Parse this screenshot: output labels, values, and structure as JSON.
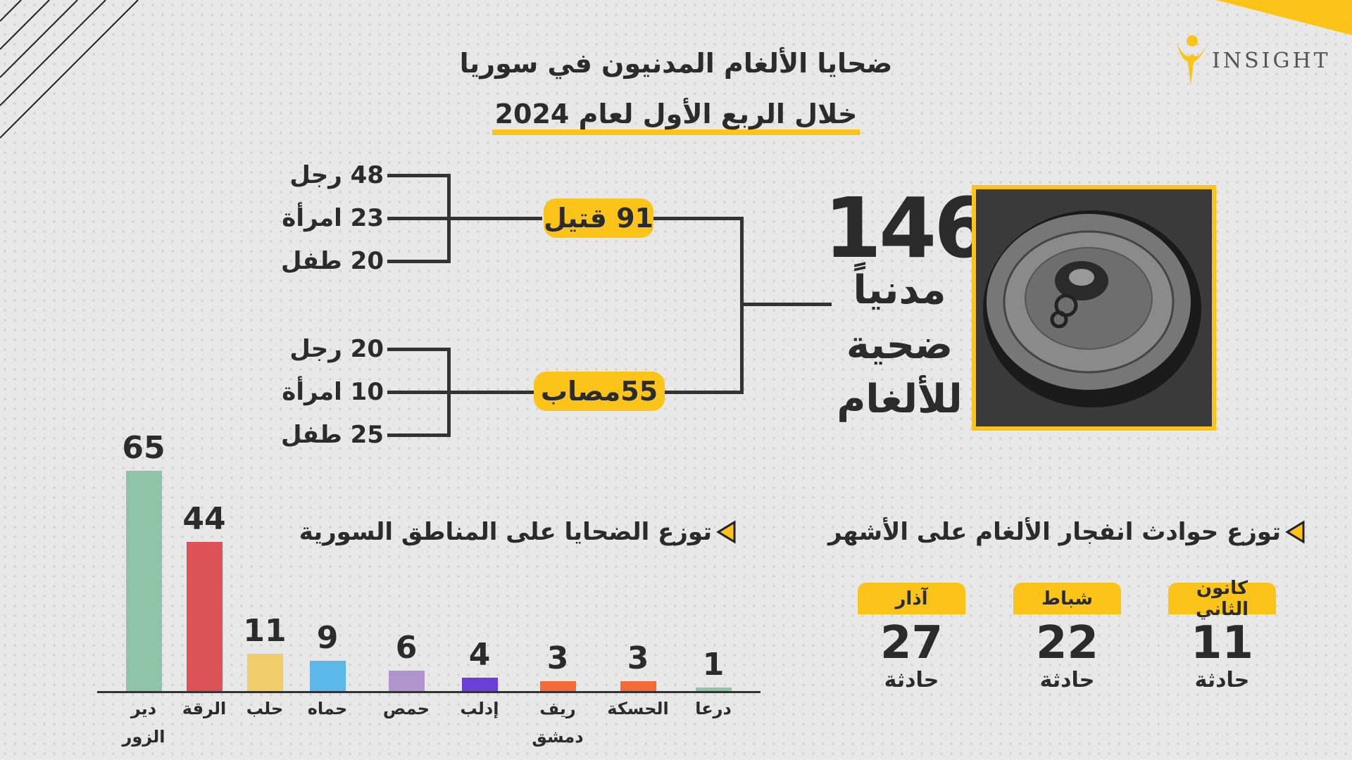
{
  "title": {
    "line1": "ضحايا الألغام المدنيون في سوريا",
    "line2": "خلال الربع الأول لعام 2024"
  },
  "logo": {
    "text": "INSIGHT"
  },
  "colors": {
    "accent": "#fcc419",
    "text": "#2b2b2b",
    "background": "#e8e8e8"
  },
  "total": {
    "value": "146",
    "line1": "مدنياً",
    "line2": "ضحية",
    "line3": "للألغام"
  },
  "killed": {
    "label": "91 قتيل",
    "items": [
      "48 رجل",
      "23 امرأة",
      "20 طفل"
    ]
  },
  "injured": {
    "label": "55مصاب",
    "items": [
      "20 رجل",
      "10 امرأة",
      "25 طفل"
    ]
  },
  "regions_heading": "توزع الضحايا على المناطق السورية",
  "months_heading": "توزع حوادث انفجار الألغام على الأشهر",
  "months": [
    {
      "name": "كانون الثاني",
      "value": "11",
      "unit": "حادثة"
    },
    {
      "name": "شباط",
      "value": "22",
      "unit": "حادثة"
    },
    {
      "name": "آذار",
      "value": "27",
      "unit": "حادثة"
    }
  ],
  "chart_data": {
    "type": "bar",
    "categories": [
      "دير الزور",
      "الرقة",
      "حلب",
      "حماه",
      "حمص",
      "إدلب",
      "ريف دمشق",
      "الحسكة",
      "درعا"
    ],
    "label_lines": [
      [
        "دير",
        "الزور"
      ],
      [
        "الرقة"
      ],
      [
        "حلب"
      ],
      [
        "حماه"
      ],
      [
        "حمص"
      ],
      [
        "إدلب"
      ],
      [
        "ريف",
        "دمشق"
      ],
      [
        "الحسكة"
      ],
      [
        "درعا"
      ]
    ],
    "values": [
      65,
      44,
      11,
      9,
      6,
      4,
      3,
      3,
      1
    ],
    "value_labels": [
      "65",
      "44",
      "11",
      "9",
      "6",
      "4",
      "3",
      "3",
      "1"
    ],
    "colors": [
      "#8fc4a8",
      "#dc5257",
      "#f1cd6a",
      "#5bb8e8",
      "#b096cc",
      "#6a3fd8",
      "#f26a3a",
      "#f26a3a",
      "#8fc4a8"
    ],
    "ylim": [
      0,
      65
    ]
  }
}
